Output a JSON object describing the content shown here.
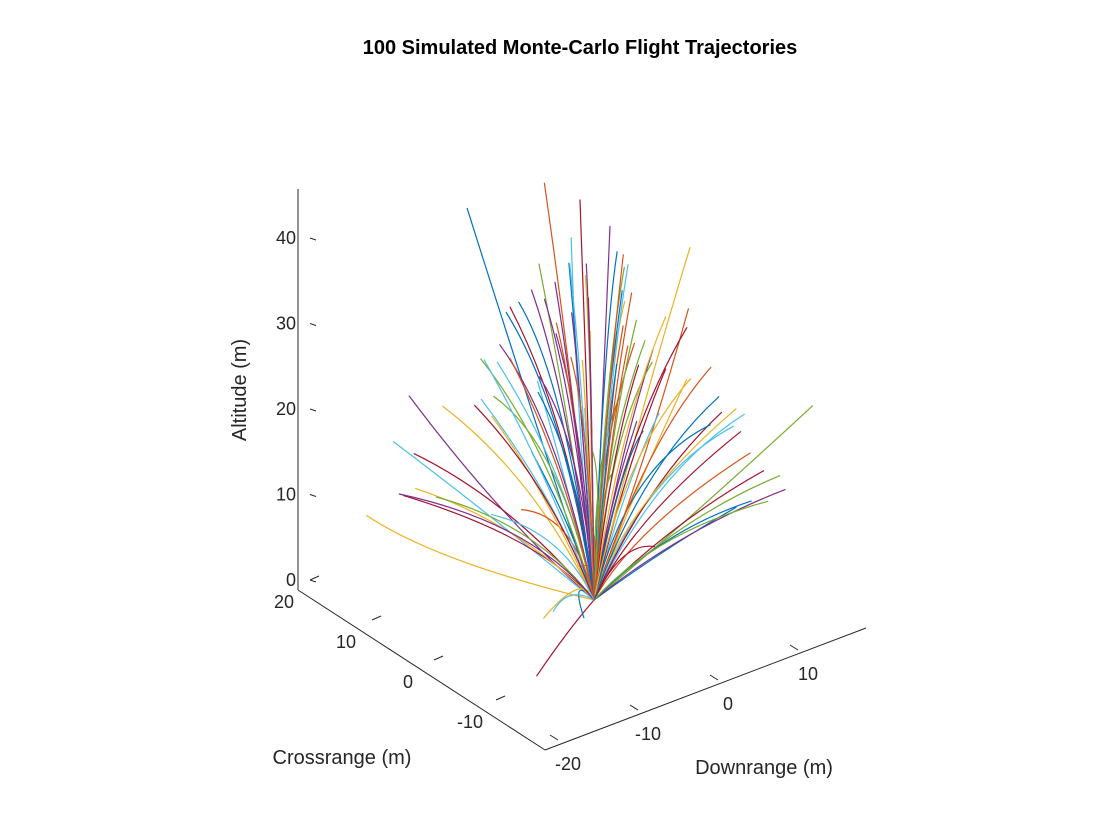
{
  "chart_data": {
    "type": "line",
    "projection": "3d",
    "title": "100 Simulated Monte-Carlo Flight Trajectories",
    "xlabel": "Downrange (m)",
    "ylabel": "Crossrange (m)",
    "zlabel": "Altitude (m)",
    "xlim": [
      -20,
      20
    ],
    "ylim": [
      -20,
      20
    ],
    "zlim": [
      0,
      45
    ],
    "xticks": [
      -20,
      -10,
      0,
      10
    ],
    "yticks": [
      -10,
      0,
      10,
      20
    ],
    "zticks": [
      0,
      10,
      20,
      30,
      40
    ],
    "grid": false,
    "legend": "none",
    "series_count": 100,
    "origin": [
      0,
      0,
      0
    ],
    "palette": [
      "#0072BD",
      "#D95319",
      "#EDB120",
      "#7E2F8E",
      "#77AC30",
      "#4DBEEE",
      "#A2142F"
    ],
    "series": [
      {
        "x": [
          0,
          -2,
          -5
        ],
        "y": [
          0,
          8,
          14
        ],
        "z": [
          0,
          20,
          41
        ]
      },
      {
        "x": [
          0,
          0,
          0
        ],
        "y": [
          0,
          3,
          8
        ],
        "z": [
          0,
          22,
          45
        ]
      },
      {
        "x": [
          0,
          5,
          12
        ],
        "y": [
          0,
          0,
          0
        ],
        "z": [
          0,
          18,
          37
        ]
      },
      {
        "x": [
          0,
          -10,
          -20
        ],
        "y": [
          0,
          2,
          4
        ],
        "z": [
          0,
          12,
          29
        ]
      },
      {
        "x": [
          0,
          8,
          18
        ],
        "y": [
          0,
          -6,
          -12
        ],
        "z": [
          0,
          10,
          22
        ]
      },
      {
        "x": [
          0,
          -4,
          -8
        ],
        "y": [
          0,
          12,
          22
        ],
        "z": [
          0,
          6,
          11
        ]
      },
      {
        "x": [
          0,
          3,
          6
        ],
        "y": [
          0,
          5,
          10
        ],
        "z": [
          0,
          20,
          40
        ]
      },
      {
        "x": [
          0,
          -6,
          -14
        ],
        "y": [
          0,
          -5,
          -8
        ],
        "z": [
          0,
          12,
          26
        ]
      },
      {
        "x": [
          0,
          10,
          18
        ],
        "y": [
          0,
          4,
          8
        ],
        "z": [
          0,
          12,
          24
        ]
      },
      {
        "x": [
          0,
          -12,
          -16
        ],
        "y": [
          0,
          10,
          16
        ],
        "z": [
          0,
          4,
          8
        ]
      },
      {
        "x": [
          0,
          1,
          2
        ],
        "y": [
          0,
          0,
          0
        ],
        "z": [
          0,
          20,
          43
        ]
      },
      {
        "x": [
          0,
          -1,
          -3
        ],
        "y": [
          0,
          2,
          5
        ],
        "z": [
          0,
          18,
          38
        ]
      },
      {
        "x": [
          0,
          4,
          8
        ],
        "y": [
          0,
          8,
          14
        ],
        "z": [
          0,
          16,
          33
        ]
      },
      {
        "x": [
          0,
          -8,
          -18
        ],
        "y": [
          0,
          -6,
          -14
        ],
        "z": [
          0,
          2,
          4
        ]
      },
      {
        "x": [
          0,
          6,
          10
        ],
        "y": [
          0,
          -4,
          -10
        ],
        "z": [
          0,
          6,
          12
        ]
      }
    ]
  }
}
